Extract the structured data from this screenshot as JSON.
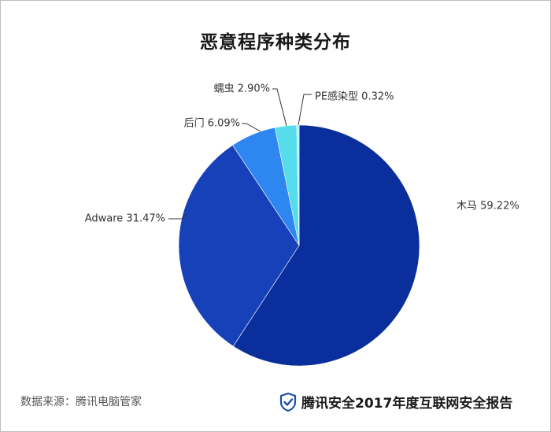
{
  "title": "恶意程序种类分布",
  "source": "数据来源：腾讯电脑管家",
  "brand": {
    "text": "腾讯安全2017年度互联网安全报告",
    "icon": "shield-check-icon",
    "icon_color": "#1a4fa8"
  },
  "chart_data": {
    "type": "pie",
    "title": "恶意程序种类分布",
    "slices": [
      {
        "name": "木马",
        "value": 59.22,
        "label": "木马 59.22%",
        "color": "#0a2f9c"
      },
      {
        "name": "Adware",
        "value": 31.47,
        "label": "Adware 31.47%",
        "color": "#1741b8"
      },
      {
        "name": "后门",
        "value": 6.09,
        "label": "后门 6.09%",
        "color": "#2e86f0"
      },
      {
        "name": "蠕虫",
        "value": 2.9,
        "label": "蠕虫 2.90%",
        "color": "#56dcea"
      },
      {
        "name": "PE感染型",
        "value": 0.32,
        "label": "PE感染型 0.32%",
        "color": "#a8eef5"
      }
    ],
    "start": "12 o'clock",
    "direction": "clockwise"
  }
}
